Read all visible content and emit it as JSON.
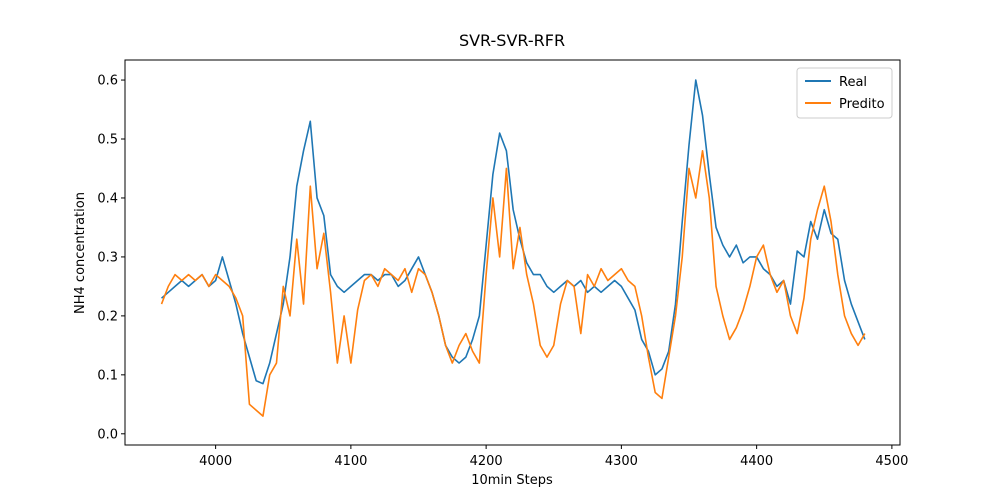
{
  "chart_data": {
    "type": "line",
    "title": "SVR-SVR-RFR",
    "xlabel": "10min Steps",
    "ylabel": "NH4 concentration",
    "x": [
      3960,
      3965,
      3970,
      3975,
      3980,
      3985,
      3990,
      3995,
      4000,
      4005,
      4010,
      4015,
      4020,
      4025,
      4030,
      4035,
      4040,
      4045,
      4050,
      4055,
      4060,
      4065,
      4070,
      4075,
      4080,
      4085,
      4090,
      4095,
      4100,
      4105,
      4110,
      4115,
      4120,
      4125,
      4130,
      4135,
      4140,
      4145,
      4150,
      4155,
      4160,
      4165,
      4170,
      4175,
      4180,
      4185,
      4190,
      4195,
      4200,
      4205,
      4210,
      4215,
      4220,
      4225,
      4230,
      4235,
      4240,
      4245,
      4250,
      4255,
      4260,
      4265,
      4270,
      4275,
      4280,
      4285,
      4290,
      4295,
      4300,
      4305,
      4310,
      4315,
      4320,
      4325,
      4330,
      4335,
      4340,
      4345,
      4350,
      4355,
      4360,
      4365,
      4370,
      4375,
      4380,
      4385,
      4390,
      4395,
      4400,
      4405,
      4410,
      4415,
      4420,
      4425,
      4430,
      4435,
      4440,
      4445,
      4450,
      4455,
      4460,
      4465,
      4470,
      4475,
      4480
    ],
    "series": [
      {
        "name": "Real",
        "color": "#1f77b4",
        "values": [
          0.23,
          0.24,
          0.25,
          0.26,
          0.25,
          0.26,
          0.27,
          0.25,
          0.26,
          0.3,
          0.26,
          0.22,
          0.17,
          0.13,
          0.09,
          0.085,
          0.12,
          0.17,
          0.22,
          0.3,
          0.42,
          0.48,
          0.53,
          0.4,
          0.37,
          0.27,
          0.25,
          0.24,
          0.25,
          0.26,
          0.27,
          0.27,
          0.26,
          0.27,
          0.27,
          0.25,
          0.26,
          0.28,
          0.3,
          0.27,
          0.24,
          0.2,
          0.15,
          0.13,
          0.12,
          0.13,
          0.16,
          0.2,
          0.32,
          0.44,
          0.51,
          0.48,
          0.38,
          0.33,
          0.29,
          0.27,
          0.27,
          0.25,
          0.24,
          0.25,
          0.26,
          0.25,
          0.26,
          0.24,
          0.25,
          0.24,
          0.25,
          0.26,
          0.25,
          0.23,
          0.21,
          0.16,
          0.14,
          0.1,
          0.11,
          0.14,
          0.22,
          0.36,
          0.49,
          0.6,
          0.54,
          0.44,
          0.35,
          0.32,
          0.3,
          0.32,
          0.29,
          0.3,
          0.3,
          0.28,
          0.27,
          0.25,
          0.26,
          0.22,
          0.31,
          0.3,
          0.36,
          0.33,
          0.38,
          0.34,
          0.33,
          0.26,
          0.22,
          0.19,
          0.16
        ]
      },
      {
        "name": "Predito",
        "color": "#ff7f0e",
        "values": [
          0.22,
          0.25,
          0.27,
          0.26,
          0.27,
          0.26,
          0.27,
          0.25,
          0.27,
          0.26,
          0.25,
          0.23,
          0.2,
          0.05,
          0.04,
          0.03,
          0.1,
          0.12,
          0.25,
          0.2,
          0.33,
          0.22,
          0.42,
          0.28,
          0.34,
          0.24,
          0.12,
          0.2,
          0.12,
          0.21,
          0.26,
          0.27,
          0.25,
          0.28,
          0.27,
          0.26,
          0.28,
          0.24,
          0.28,
          0.27,
          0.24,
          0.2,
          0.15,
          0.12,
          0.15,
          0.17,
          0.14,
          0.12,
          0.27,
          0.4,
          0.3,
          0.45,
          0.28,
          0.35,
          0.27,
          0.22,
          0.15,
          0.13,
          0.15,
          0.22,
          0.26,
          0.25,
          0.17,
          0.27,
          0.25,
          0.28,
          0.26,
          0.27,
          0.28,
          0.26,
          0.25,
          0.2,
          0.13,
          0.07,
          0.06,
          0.13,
          0.2,
          0.3,
          0.45,
          0.4,
          0.48,
          0.4,
          0.25,
          0.2,
          0.16,
          0.18,
          0.21,
          0.25,
          0.3,
          0.32,
          0.27,
          0.24,
          0.26,
          0.2,
          0.17,
          0.23,
          0.33,
          0.38,
          0.42,
          0.36,
          0.27,
          0.2,
          0.17,
          0.15,
          0.17
        ]
      }
    ],
    "xlim": [
      3933,
      4506
    ],
    "xticks": [
      4000,
      4100,
      4200,
      4300,
      4400,
      4500
    ],
    "ylim": [
      -0.019,
      0.634
    ],
    "yticks": [
      {
        "value": 0,
        "label": "0.0"
      },
      0.1,
      0.2,
      0.3,
      0.4,
      0.5,
      0.6
    ],
    "legend": "upper right",
    "grid": false
  }
}
